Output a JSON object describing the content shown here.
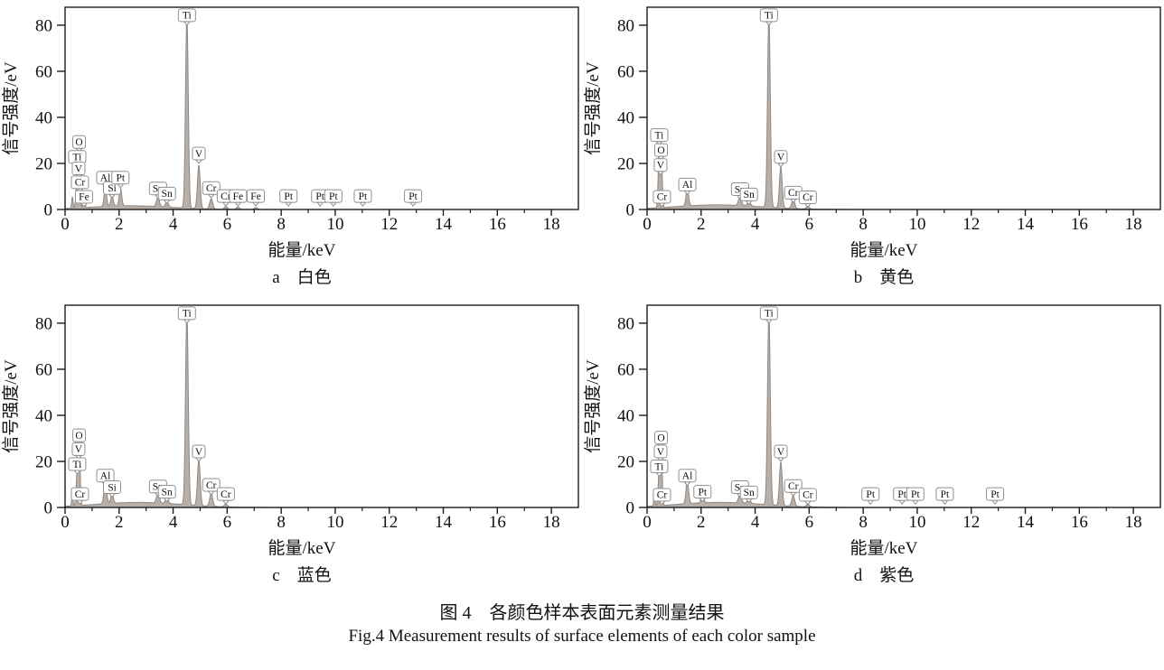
{
  "figure": {
    "caption_zh": "图 4　各颜色样本表面元素测量结果",
    "caption_en": "Fig.4 Measurement results of surface elements of each color sample"
  },
  "style": {
    "spectrum_fill": "#b8b0a8",
    "spectrum_stroke": "#8f8781",
    "axis_color": "#1c1c1c",
    "label_box_fill": "#ffffff",
    "label_box_stroke": "#8f8f8f",
    "text_color": "#111111"
  },
  "chart_data": [
    {
      "type": "area",
      "panel": "a",
      "caption_letter": "a",
      "caption_label": "白色",
      "xlabel": "能量/keV",
      "ylabel": "信号强度/eV",
      "xlim": [
        0,
        19
      ],
      "ylim": [
        0,
        87.8
      ],
      "x_ticks": [
        0,
        2,
        4,
        6,
        8,
        10,
        12,
        14,
        16,
        18
      ],
      "y_ticks": [
        0,
        20,
        40,
        60,
        80
      ],
      "peaks": [
        {
          "x": 0.27,
          "h": 5,
          "s": 0.025
        },
        {
          "x": 0.45,
          "h": 21,
          "s": 0.035
        },
        {
          "x": 0.53,
          "h": 26,
          "s": 0.03
        },
        {
          "x": 0.7,
          "h": 4,
          "s": 0.035
        },
        {
          "x": 1.49,
          "h": 8.5,
          "s": 0.045
        },
        {
          "x": 1.74,
          "h": 4.5,
          "s": 0.045
        },
        {
          "x": 2.05,
          "h": 8,
          "s": 0.045
        },
        {
          "x": 3.44,
          "h": 4,
          "s": 0.055
        },
        {
          "x": 3.77,
          "h": 2.2,
          "s": 0.055
        },
        {
          "x": 4.51,
          "h": 84,
          "s": 0.05
        },
        {
          "x": 4.95,
          "h": 19,
          "s": 0.05
        },
        {
          "x": 5.41,
          "h": 4.5,
          "s": 0.055
        },
        {
          "x": 5.95,
          "h": 1.2,
          "s": 0.055
        },
        {
          "x": 6.4,
          "h": 1.0,
          "s": 0.06
        },
        {
          "x": 7.06,
          "h": 0.8,
          "s": 0.06
        }
      ],
      "background": [
        {
          "x": 2.4,
          "h": 1.6,
          "s": 1.5
        }
      ],
      "labels": [
        {
          "el": "O",
          "x": 0.52,
          "y": 25
        },
        {
          "el": "Ti",
          "x": 0.45,
          "y": 18.5
        },
        {
          "el": "V",
          "x": 0.5,
          "y": 13.5
        },
        {
          "el": "Cr",
          "x": 0.55,
          "y": 7.5
        },
        {
          "el": "Fe",
          "x": 0.7,
          "y": 1.2
        },
        {
          "el": "Al",
          "x": 1.49,
          "y": 9.5
        },
        {
          "el": "Si",
          "x": 1.74,
          "y": 5
        },
        {
          "el": "Pt",
          "x": 2.05,
          "y": 9.5
        },
        {
          "el": "Sn",
          "x": 3.44,
          "y": 4.8
        },
        {
          "el": "Sn",
          "x": 3.77,
          "y": 2.6
        },
        {
          "el": "Ti",
          "x": 4.51,
          "y": 80
        },
        {
          "el": "V",
          "x": 4.95,
          "y": 20
        },
        {
          "el": "Cr",
          "x": 5.41,
          "y": 5
        },
        {
          "el": "Cr",
          "x": 5.95,
          "y": 1.5
        },
        {
          "el": "Fe",
          "x": 6.4,
          "y": 1.5
        },
        {
          "el": "Fe",
          "x": 7.06,
          "y": 1.5
        },
        {
          "el": "Pt",
          "x": 8.27,
          "y": 1.5
        },
        {
          "el": "Pt",
          "x": 9.44,
          "y": 1.5
        },
        {
          "el": "Pt",
          "x": 9.93,
          "y": 1.5
        },
        {
          "el": "Pt",
          "x": 11.02,
          "y": 1.5
        },
        {
          "el": "Pt",
          "x": 12.88,
          "y": 1.5
        }
      ]
    },
    {
      "type": "area",
      "panel": "b",
      "caption_letter": "b",
      "caption_label": "黄色",
      "xlabel": "能量/keV",
      "ylabel": "信号强度/eV",
      "xlim": [
        0,
        19
      ],
      "ylim": [
        0,
        87.8
      ],
      "x_ticks": [
        0,
        2,
        4,
        6,
        8,
        10,
        12,
        14,
        16,
        18
      ],
      "y_ticks": [
        0,
        20,
        40,
        60,
        80
      ],
      "peaks": [
        {
          "x": 0.45,
          "h": 28,
          "s": 0.035
        },
        {
          "x": 0.53,
          "h": 23,
          "s": 0.03
        },
        {
          "x": 1.49,
          "h": 7,
          "s": 0.05
        },
        {
          "x": 3.44,
          "h": 3.8,
          "s": 0.055
        },
        {
          "x": 3.77,
          "h": 2.0,
          "s": 0.055
        },
        {
          "x": 4.51,
          "h": 84,
          "s": 0.05
        },
        {
          "x": 4.95,
          "h": 18,
          "s": 0.05
        },
        {
          "x": 5.41,
          "h": 4,
          "s": 0.055
        },
        {
          "x": 5.95,
          "h": 1.2,
          "s": 0.055
        }
      ],
      "background": [
        {
          "x": 2.6,
          "h": 2.0,
          "s": 1.6
        }
      ],
      "labels": [
        {
          "el": "Ti",
          "x": 0.45,
          "y": 28
        },
        {
          "el": "O",
          "x": 0.52,
          "y": 21.5
        },
        {
          "el": "V",
          "x": 0.5,
          "y": 15
        },
        {
          "el": "Cr",
          "x": 0.55,
          "y": 1.2
        },
        {
          "el": "Al",
          "x": 1.49,
          "y": 6.5
        },
        {
          "el": "Sn",
          "x": 3.44,
          "y": 4.5
        },
        {
          "el": "Sn",
          "x": 3.77,
          "y": 2.2
        },
        {
          "el": "Ti",
          "x": 4.51,
          "y": 80
        },
        {
          "el": "V",
          "x": 4.95,
          "y": 18.5
        },
        {
          "el": "Cr",
          "x": 5.41,
          "y": 3
        },
        {
          "el": "Cr",
          "x": 5.95,
          "y": 1.0
        }
      ]
    },
    {
      "type": "area",
      "panel": "c",
      "caption_letter": "c",
      "caption_label": "蓝色",
      "xlabel": "能量/keV",
      "ylabel": "信号强度/eV",
      "xlim": [
        0,
        19
      ],
      "ylim": [
        0,
        87.8
      ],
      "x_ticks": [
        0,
        2,
        4,
        6,
        8,
        10,
        12,
        14,
        16,
        18
      ],
      "y_ticks": [
        0,
        20,
        40,
        60,
        80
      ],
      "peaks": [
        {
          "x": 0.27,
          "h": 4,
          "s": 0.025
        },
        {
          "x": 0.45,
          "h": 16,
          "s": 0.035
        },
        {
          "x": 0.53,
          "h": 27,
          "s": 0.03
        },
        {
          "x": 1.49,
          "h": 9.5,
          "s": 0.05
        },
        {
          "x": 1.74,
          "h": 4.5,
          "s": 0.045
        },
        {
          "x": 3.44,
          "h": 4,
          "s": 0.055
        },
        {
          "x": 3.77,
          "h": 2.2,
          "s": 0.055
        },
        {
          "x": 4.51,
          "h": 84,
          "s": 0.05
        },
        {
          "x": 4.95,
          "h": 20,
          "s": 0.05
        },
        {
          "x": 5.41,
          "h": 5.5,
          "s": 0.055
        },
        {
          "x": 5.95,
          "h": 1.2,
          "s": 0.055
        }
      ],
      "background": [
        {
          "x": 2.7,
          "h": 2.2,
          "s": 1.6
        }
      ],
      "labels": [
        {
          "el": "O",
          "x": 0.52,
          "y": 27
        },
        {
          "el": "V",
          "x": 0.5,
          "y": 21
        },
        {
          "el": "Ti",
          "x": 0.45,
          "y": 14.5
        },
        {
          "el": "Cr",
          "x": 0.55,
          "y": 1.5
        },
        {
          "el": "Al",
          "x": 1.49,
          "y": 9.5
        },
        {
          "el": "Si",
          "x": 1.74,
          "y": 4.5
        },
        {
          "el": "Sn",
          "x": 3.44,
          "y": 4.8
        },
        {
          "el": "Sn",
          "x": 3.77,
          "y": 2.5
        },
        {
          "el": "Ti",
          "x": 4.51,
          "y": 80
        },
        {
          "el": "V",
          "x": 4.95,
          "y": 20
        },
        {
          "el": "Cr",
          "x": 5.41,
          "y": 5.5
        },
        {
          "el": "Cr",
          "x": 5.95,
          "y": 1.5
        }
      ]
    },
    {
      "type": "area",
      "panel": "d",
      "caption_letter": "d",
      "caption_label": "紫色",
      "xlabel": "能量/keV",
      "ylabel": "信号强度/eV",
      "xlim": [
        0,
        19
      ],
      "ylim": [
        0,
        87.8
      ],
      "x_ticks": [
        0,
        2,
        4,
        6,
        8,
        10,
        12,
        14,
        16,
        18
      ],
      "y_ticks": [
        0,
        20,
        40,
        60,
        80
      ],
      "peaks": [
        {
          "x": 0.27,
          "h": 4,
          "s": 0.025
        },
        {
          "x": 0.45,
          "h": 17,
          "s": 0.035
        },
        {
          "x": 0.53,
          "h": 27,
          "s": 0.03
        },
        {
          "x": 1.49,
          "h": 9.5,
          "s": 0.05
        },
        {
          "x": 2.05,
          "h": 3.5,
          "s": 0.05
        },
        {
          "x": 3.44,
          "h": 3.8,
          "s": 0.055
        },
        {
          "x": 3.77,
          "h": 2.0,
          "s": 0.055
        },
        {
          "x": 4.51,
          "h": 84,
          "s": 0.05
        },
        {
          "x": 4.95,
          "h": 19,
          "s": 0.05
        },
        {
          "x": 5.41,
          "h": 4.5,
          "s": 0.055
        },
        {
          "x": 5.95,
          "h": 1.2,
          "s": 0.055
        }
      ],
      "background": [
        {
          "x": 2.7,
          "h": 2.2,
          "s": 1.6
        }
      ],
      "labels": [
        {
          "el": "O",
          "x": 0.52,
          "y": 26
        },
        {
          "el": "V",
          "x": 0.5,
          "y": 20
        },
        {
          "el": "Ti",
          "x": 0.45,
          "y": 13.5
        },
        {
          "el": "Cr",
          "x": 0.55,
          "y": 1.2
        },
        {
          "el": "Al",
          "x": 1.49,
          "y": 9.5
        },
        {
          "el": "Pt",
          "x": 2.05,
          "y": 2.5
        },
        {
          "el": "Sn",
          "x": 3.44,
          "y": 4.5
        },
        {
          "el": "Sn",
          "x": 3.77,
          "y": 2.2
        },
        {
          "el": "Ti",
          "x": 4.51,
          "y": 80
        },
        {
          "el": "V",
          "x": 4.95,
          "y": 20
        },
        {
          "el": "Cr",
          "x": 5.41,
          "y": 5
        },
        {
          "el": "Cr",
          "x": 5.95,
          "y": 1.2
        },
        {
          "el": "Pt",
          "x": 8.27,
          "y": 1.5
        },
        {
          "el": "Pt",
          "x": 9.44,
          "y": 1.5
        },
        {
          "el": "Pt",
          "x": 9.93,
          "y": 1.5
        },
        {
          "el": "Pt",
          "x": 11.02,
          "y": 1.5
        },
        {
          "el": "Pt",
          "x": 12.88,
          "y": 1.5
        }
      ]
    }
  ]
}
